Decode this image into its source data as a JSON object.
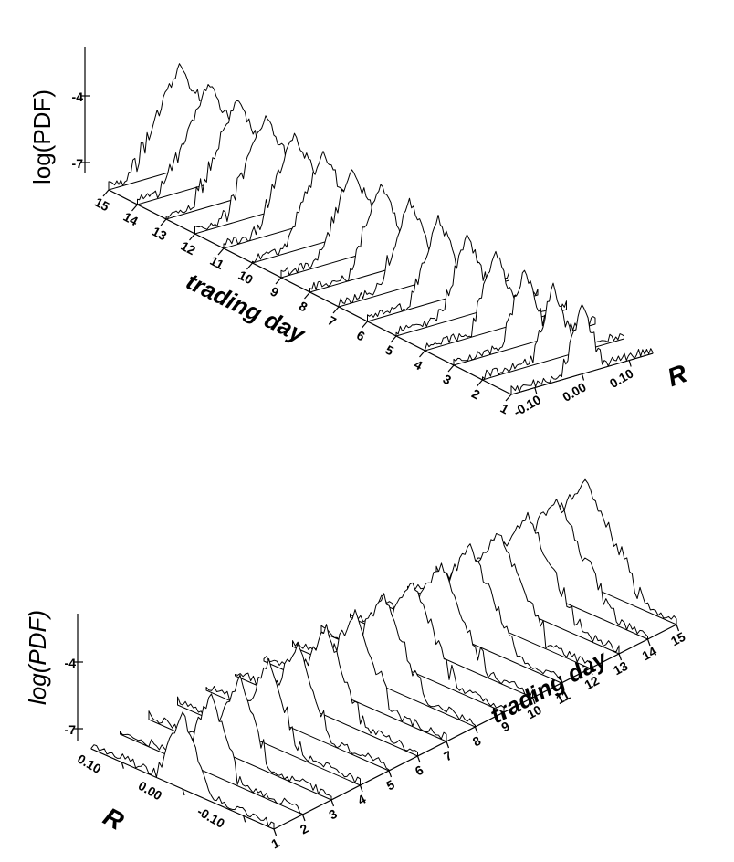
{
  "chart_data": [
    {
      "type": "line",
      "view": "3d-waterfall",
      "ylabel": "log(PDF)",
      "yticks": [
        "-4",
        "-7"
      ],
      "xlabel": "trading day",
      "days": [
        "1",
        "2",
        "3",
        "4",
        "5",
        "6",
        "7",
        "8",
        "9",
        "10",
        "11",
        "12",
        "13",
        "14",
        "15"
      ],
      "zlabel": "R",
      "rticks": [
        "0.10",
        "0.00",
        "-0.10"
      ],
      "r_range": [
        -0.15,
        0.15
      ],
      "logpdf_range": [
        -7.5,
        -3
      ],
      "peak_logpdf": [
        -4.6,
        -4.5,
        -4.4,
        -4.3,
        -4.2,
        -4.1,
        -4.0,
        -3.9,
        -3.9,
        -3.8,
        -3.7,
        -3.6,
        -3.5,
        -3.4,
        -3.3
      ],
      "width_R": [
        0.05,
        0.052,
        0.055,
        0.057,
        0.06,
        0.062,
        0.065,
        0.067,
        0.07,
        0.072,
        0.075,
        0.077,
        0.08,
        0.082,
        0.085
      ]
    },
    {
      "type": "line",
      "view": "3d-waterfall",
      "ylabel": "log(PDF)",
      "yticks": [
        "-4",
        "-7"
      ],
      "xlabel": "trading day",
      "days": [
        "1",
        "2",
        "3",
        "4",
        "5",
        "6",
        "7",
        "8",
        "9",
        "10",
        "11",
        "12",
        "13",
        "14",
        "15"
      ],
      "zlabel": "R",
      "rticks": [
        "0.10",
        "0.00",
        "-0.10"
      ],
      "r_range": [
        -0.15,
        0.15
      ],
      "logpdf_range": [
        -7.5,
        -3
      ],
      "peak_logpdf": [
        -4.3,
        -4.2,
        -4.1,
        -4.1,
        -4.0,
        -3.9,
        -3.9,
        -3.8,
        -3.8,
        -3.7,
        -3.6,
        -3.6,
        -3.5,
        -3.4,
        -3.3
      ],
      "width_R": [
        0.045,
        0.048,
        0.05,
        0.052,
        0.055,
        0.057,
        0.06,
        0.062,
        0.065,
        0.067,
        0.07,
        0.072,
        0.075,
        0.077,
        0.08
      ]
    }
  ]
}
